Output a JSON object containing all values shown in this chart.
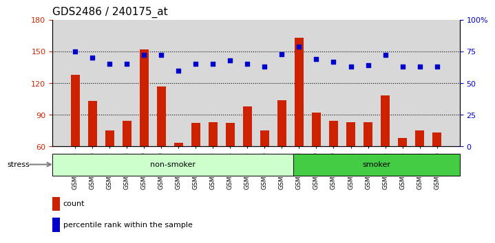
{
  "title": "GDS2486 / 240175_at",
  "samples": [
    "GSM101095",
    "GSM101096",
    "GSM101097",
    "GSM101098",
    "GSM101099",
    "GSM101100",
    "GSM101101",
    "GSM101102",
    "GSM101103",
    "GSM101104",
    "GSM101105",
    "GSM101106",
    "GSM101107",
    "GSM101108",
    "GSM101109",
    "GSM101110",
    "GSM101111",
    "GSM101112",
    "GSM101113",
    "GSM101114",
    "GSM101115",
    "GSM101116"
  ],
  "count_values": [
    128,
    103,
    75,
    84,
    152,
    117,
    63,
    82,
    83,
    82,
    98,
    75,
    104,
    163,
    92,
    84,
    83,
    83,
    108,
    68,
    75,
    73
  ],
  "percentile_values": [
    75,
    70,
    65,
    65,
    72,
    72,
    60,
    65,
    65,
    68,
    65,
    63,
    73,
    79,
    69,
    67,
    63,
    64,
    72,
    63,
    63,
    63
  ],
  "non_smoker_count": 13,
  "smoker_count": 9,
  "ylim_left": [
    60,
    180
  ],
  "ylim_right": [
    0,
    100
  ],
  "yticks_left": [
    60,
    90,
    120,
    150,
    180
  ],
  "yticks_right": [
    0,
    25,
    50,
    75,
    100
  ],
  "bar_color": "#cc2200",
  "scatter_color": "#0000cc",
  "non_smoker_color": "#ccffcc",
  "smoker_color": "#44cc44",
  "grid_color": "#000000",
  "background_color": "#d8d8d8",
  "stress_label": "stress",
  "non_smoker_label": "non-smoker",
  "smoker_label": "smoker",
  "legend_count_label": "count",
  "legend_pct_label": "percentile rank within the sample",
  "title_fontsize": 11,
  "axis_fontsize": 8,
  "label_fontsize": 8
}
